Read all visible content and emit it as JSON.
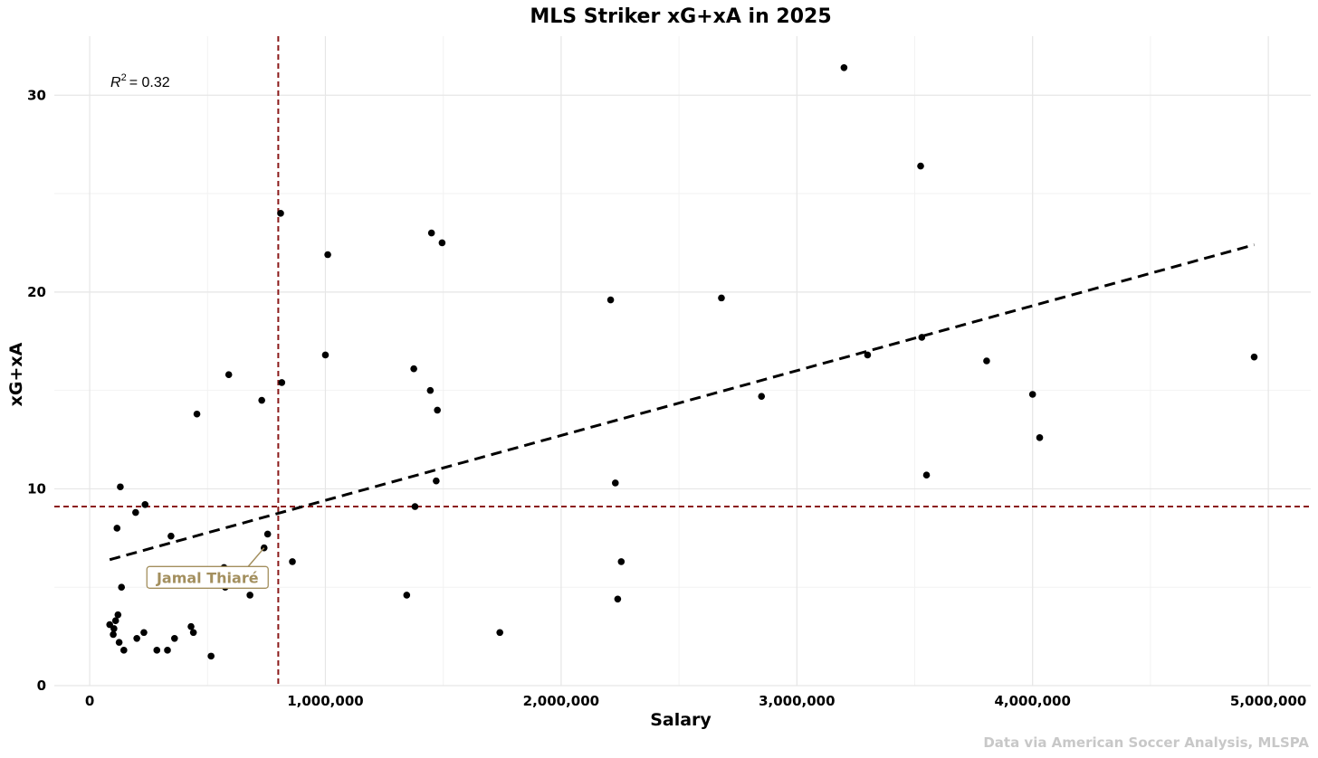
{
  "chart_data": {
    "type": "scatter",
    "title": "MLS Striker xG+xA in 2025",
    "xlabel": "Salary",
    "ylabel": "xG+xA",
    "caption": "Data via American Soccer Analysis, MLSPA",
    "r2_label": "= 0.32",
    "r2_symbol": "R",
    "r2_exponent": "2",
    "xlim": [
      -150000,
      5180000
    ],
    "ylim": [
      0,
      33
    ],
    "x_ticks": [
      0,
      1000000,
      2000000,
      3000000,
      4000000,
      5000000
    ],
    "x_tick_labels": [
      "0",
      "1,000,000",
      "2,000,000",
      "3,000,000",
      "4,000,000",
      "5,000,000"
    ],
    "x_minor_ticks": [
      500000,
      1500000,
      2500000,
      3500000,
      4500000
    ],
    "y_ticks": [
      0,
      10,
      20,
      30
    ],
    "y_tick_labels": [
      "0",
      "10",
      "20",
      "30"
    ],
    "y_minor_ticks": [
      5,
      15,
      25
    ],
    "grid": true,
    "vline_x": 800000,
    "hline_y": 9.1,
    "reference_color": "#8b1a1a",
    "trendline": {
      "x": [
        85000,
        4940000
      ],
      "y": [
        6.4,
        22.4
      ],
      "color": "#000000"
    },
    "point_color": "#000000",
    "highlight": {
      "name": "Jamal Thiaré",
      "x": 740000,
      "y": 7.0,
      "label_x": 500000,
      "label_y": 5.5,
      "color": "#a38f5e"
    },
    "x": [
      85000,
      100000,
      103000,
      110000,
      116000,
      120000,
      125000,
      130000,
      135000,
      145000,
      195000,
      200000,
      230000,
      235000,
      285000,
      330000,
      345000,
      360000,
      430000,
      440000,
      455000,
      515000,
      570000,
      575000,
      590000,
      680000,
      730000,
      740000,
      755000,
      810000,
      815000,
      860000,
      1000000,
      1010000,
      1345000,
      1375000,
      1380000,
      1445000,
      1450000,
      1470000,
      1475000,
      1495000,
      1740000,
      2210000,
      2230000,
      2240000,
      2255000,
      2680000,
      2850000,
      3200000,
      3300000,
      3525000,
      3530000,
      3550000,
      3805000,
      4000000,
      4030000,
      4940000
    ],
    "y": [
      3.1,
      2.6,
      2.9,
      3.3,
      8.0,
      3.6,
      2.2,
      10.1,
      5.0,
      1.8,
      8.8,
      2.4,
      2.7,
      9.2,
      1.8,
      1.8,
      7.6,
      2.4,
      3.0,
      2.7,
      13.8,
      1.5,
      6.0,
      5.0,
      15.8,
      4.6,
      14.5,
      7.0,
      7.7,
      24.0,
      15.4,
      6.3,
      16.8,
      21.9,
      4.6,
      16.1,
      9.1,
      15.0,
      23.0,
      10.4,
      14.0,
      22.5,
      2.7,
      19.6,
      10.3,
      4.4,
      6.3,
      19.7,
      14.7,
      31.4,
      16.8,
      26.4,
      17.7,
      10.7,
      16.5,
      14.8,
      12.6,
      16.7
    ]
  }
}
